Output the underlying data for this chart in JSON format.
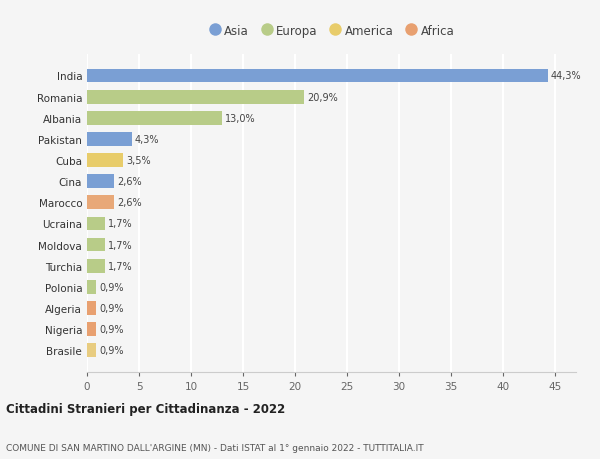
{
  "categories": [
    "Brasile",
    "Nigeria",
    "Algeria",
    "Polonia",
    "Turchia",
    "Moldova",
    "Ucraina",
    "Marocco",
    "Cina",
    "Cuba",
    "Pakistan",
    "Albania",
    "Romania",
    "India"
  ],
  "values": [
    0.9,
    0.9,
    0.9,
    0.9,
    1.7,
    1.7,
    1.7,
    2.6,
    2.6,
    3.5,
    4.3,
    13.0,
    20.9,
    44.3
  ],
  "labels": [
    "0,9%",
    "0,9%",
    "0,9%",
    "0,9%",
    "1,7%",
    "1,7%",
    "1,7%",
    "2,6%",
    "2,6%",
    "3,5%",
    "4,3%",
    "13,0%",
    "20,9%",
    "44,3%"
  ],
  "colors": [
    "#e8cc80",
    "#e8a070",
    "#e8a070",
    "#b8cc88",
    "#b8cc88",
    "#b8cc88",
    "#b8cc88",
    "#e8a878",
    "#7a9fd4",
    "#e8cc6a",
    "#7a9fd4",
    "#b8cc88",
    "#b8cc88",
    "#7a9fd4"
  ],
  "continent_colors": {
    "Asia": "#7a9fd4",
    "Europa": "#b8cc88",
    "America": "#e8cc6a",
    "Africa": "#e8a070"
  },
  "legend_labels": [
    "Asia",
    "Europa",
    "America",
    "Africa"
  ],
  "title": "Cittadini Stranieri per Cittadinanza - 2022",
  "subtitle": "COMUNE DI SAN MARTINO DALL'ARGINE (MN) - Dati ISTAT al 1° gennaio 2022 - TUTTITALIA.IT",
  "xlim": [
    0,
    47
  ],
  "background_color": "#f5f5f5",
  "grid_color": "#ffffff",
  "bar_height": 0.65
}
